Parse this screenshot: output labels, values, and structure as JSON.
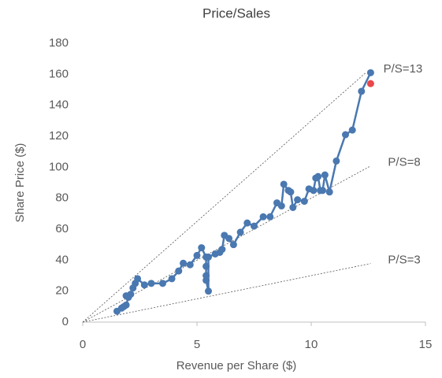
{
  "chart_data": {
    "type": "line",
    "title": "Price/Sales",
    "x_label": "Revenue per Share ($)",
    "y_label": "Share Price ($)",
    "xlim": [
      0,
      15
    ],
    "xticks": [
      0,
      5,
      10,
      15
    ],
    "ylim": [
      0,
      180
    ],
    "yticks": [
      0,
      20,
      40,
      60,
      80,
      100,
      120,
      140,
      160,
      180
    ],
    "grid": false,
    "series": [
      {
        "name": "P/S=13",
        "color": "#555555",
        "dashed": true,
        "markers": false,
        "line": true,
        "x": [
          0,
          12.4
        ],
        "values": [
          0,
          161.2
        ]
      },
      {
        "name": "P/S=8",
        "color": "#555555",
        "dashed": true,
        "markers": false,
        "line": true,
        "x": [
          0,
          12.6
        ],
        "values": [
          0,
          100.8
        ]
      },
      {
        "name": "P/S=3",
        "color": "#555555",
        "dashed": true,
        "markers": false,
        "line": true,
        "x": [
          0,
          12.6
        ],
        "values": [
          0,
          37.8
        ]
      },
      {
        "color": "#4a78b0",
        "dashed": false,
        "markers": true,
        "line": true,
        "x": [
          1.5,
          1.7,
          1.8,
          1.9,
          2.0,
          1.9,
          2.1,
          2.2,
          2.3,
          2.4,
          2.7,
          3.0,
          3.5,
          3.9,
          4.2,
          4.4,
          4.7,
          5.0,
          5.2,
          5.4,
          5.4,
          5.4,
          5.4,
          5.5,
          5.5,
          5.8,
          6.0,
          6.1,
          6.2,
          6.4,
          6.6,
          6.9,
          7.2,
          7.5,
          7.9,
          8.2,
          8.5,
          8.7,
          8.8,
          9.0,
          9.1,
          9.2,
          9.4,
          9.7,
          9.9,
          10.1,
          10.2,
          10.3,
          10.4,
          10.5,
          10.6,
          10.8,
          11.1,
          11.5,
          11.8,
          12.2,
          12.6
        ],
        "values": [
          7,
          9,
          10,
          11,
          16,
          17,
          18,
          22,
          25,
          28,
          24,
          25,
          25,
          28,
          33,
          38,
          37,
          43,
          48,
          42,
          36,
          30,
          27,
          20,
          42,
          44,
          45,
          47,
          56,
          54,
          50,
          58,
          64,
          62,
          68,
          68,
          77,
          75,
          89,
          85,
          84,
          74,
          79,
          78,
          86,
          85,
          93,
          94,
          85,
          85,
          95,
          84,
          104,
          121,
          124,
          149,
          161
        ]
      },
      {
        "color": "#e8474c",
        "dashed": false,
        "markers": true,
        "line": false,
        "x": [
          12.6
        ],
        "values": [
          154
        ]
      }
    ]
  }
}
